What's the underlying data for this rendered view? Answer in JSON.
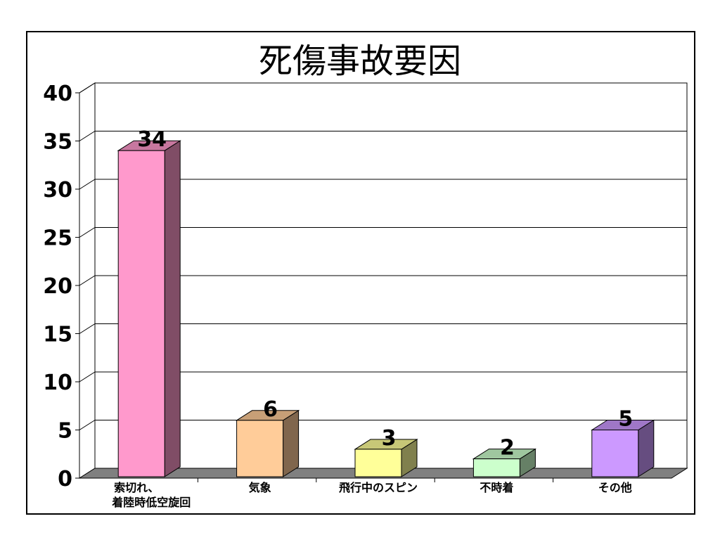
{
  "chart_data": {
    "type": "bar",
    "title": "死傷事故要因",
    "categories": [
      "索切れ、\n着陸時低空旋回",
      "気象",
      "飛行中のスピン",
      "不時着",
      "その他"
    ],
    "values": [
      34,
      6,
      3,
      2,
      5
    ],
    "ylim": [
      0,
      40
    ],
    "yticks": [
      0,
      5,
      10,
      15,
      20,
      25,
      30,
      35,
      40
    ],
    "grid": true,
    "legend": "none",
    "data_labels": true,
    "style": "3d-column",
    "colors": {
      "bars": [
        "#ff99cc",
        "#ffcc99",
        "#ffff99",
        "#ccffcc",
        "#cc99ff"
      ],
      "floor": "#808080",
      "grid": "#000000"
    }
  }
}
